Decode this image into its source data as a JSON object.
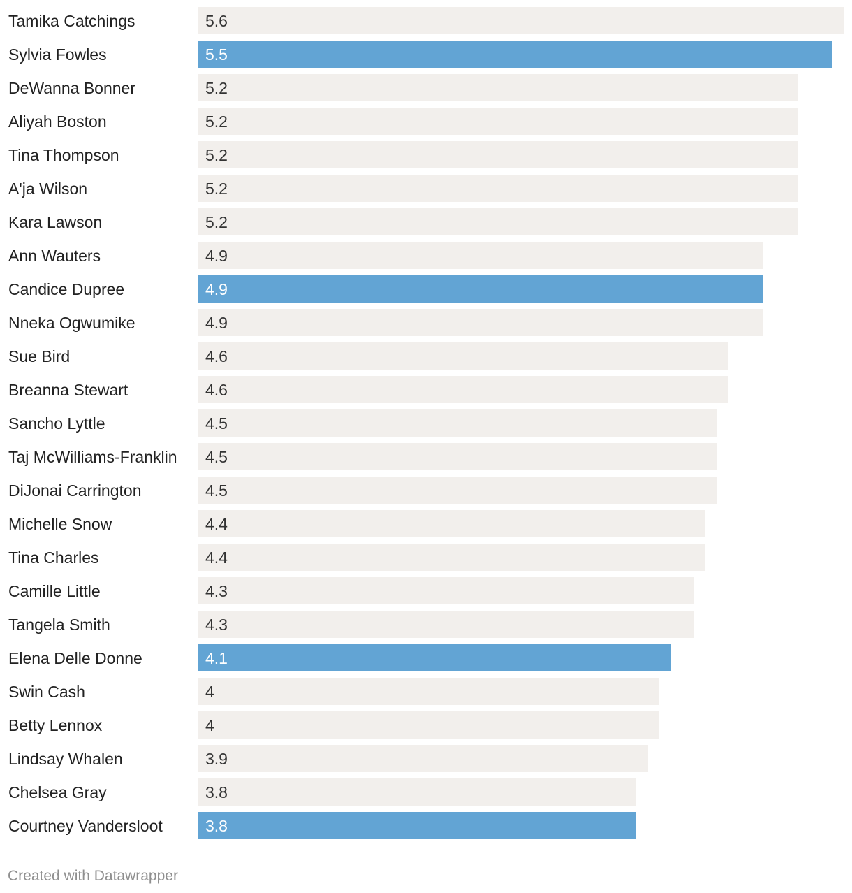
{
  "chart_data": {
    "type": "bar",
    "orientation": "horizontal",
    "title": "",
    "xlabel": "",
    "ylabel": "",
    "xlim": [
      0,
      5.6
    ],
    "categories": [
      "Tamika Catchings",
      "Sylvia Fowles",
      "DeWanna Bonner",
      "Aliyah Boston",
      "Tina Thompson",
      "A'ja Wilson",
      "Kara Lawson",
      "Ann Wauters",
      "Candice Dupree",
      "Nneka Ogwumike",
      "Sue Bird",
      "Breanna Stewart",
      "Sancho Lyttle",
      "Taj McWilliams-Franklin",
      "DiJonai Carrington",
      "Michelle Snow",
      "Tina Charles",
      "Camille Little",
      "Tangela Smith",
      "Elena Delle Donne",
      "Swin Cash",
      "Betty Lennox",
      "Lindsay Whalen",
      "Chelsea Gray",
      "Courtney Vandersloot"
    ],
    "values": [
      5.6,
      5.5,
      5.2,
      5.2,
      5.2,
      5.2,
      5.2,
      4.9,
      4.9,
      4.9,
      4.6,
      4.6,
      4.5,
      4.5,
      4.5,
      4.4,
      4.4,
      4.3,
      4.3,
      4.1,
      4,
      4,
      3.9,
      3.8,
      3.8
    ],
    "value_labels": [
      "5.6",
      "5.5",
      "5.2",
      "5.2",
      "5.2",
      "5.2",
      "5.2",
      "4.9",
      "4.9",
      "4.9",
      "4.6",
      "4.6",
      "4.5",
      "4.5",
      "4.5",
      "4.4",
      "4.4",
      "4.3",
      "4.3",
      "4.1",
      "4",
      "4",
      "3.9",
      "3.8",
      "3.8"
    ],
    "highlighted": [
      "Sylvia Fowles",
      "Candice Dupree",
      "Elena Delle Donne",
      "Courtney Vandersloot"
    ],
    "colors": {
      "default_bar": "#f2efec",
      "highlight_bar": "#62a4d4",
      "label_text": "#222222",
      "value_text_default": "#333333",
      "value_text_highlight": "#ffffff"
    }
  },
  "footer": {
    "credit": "Created with Datawrapper"
  }
}
